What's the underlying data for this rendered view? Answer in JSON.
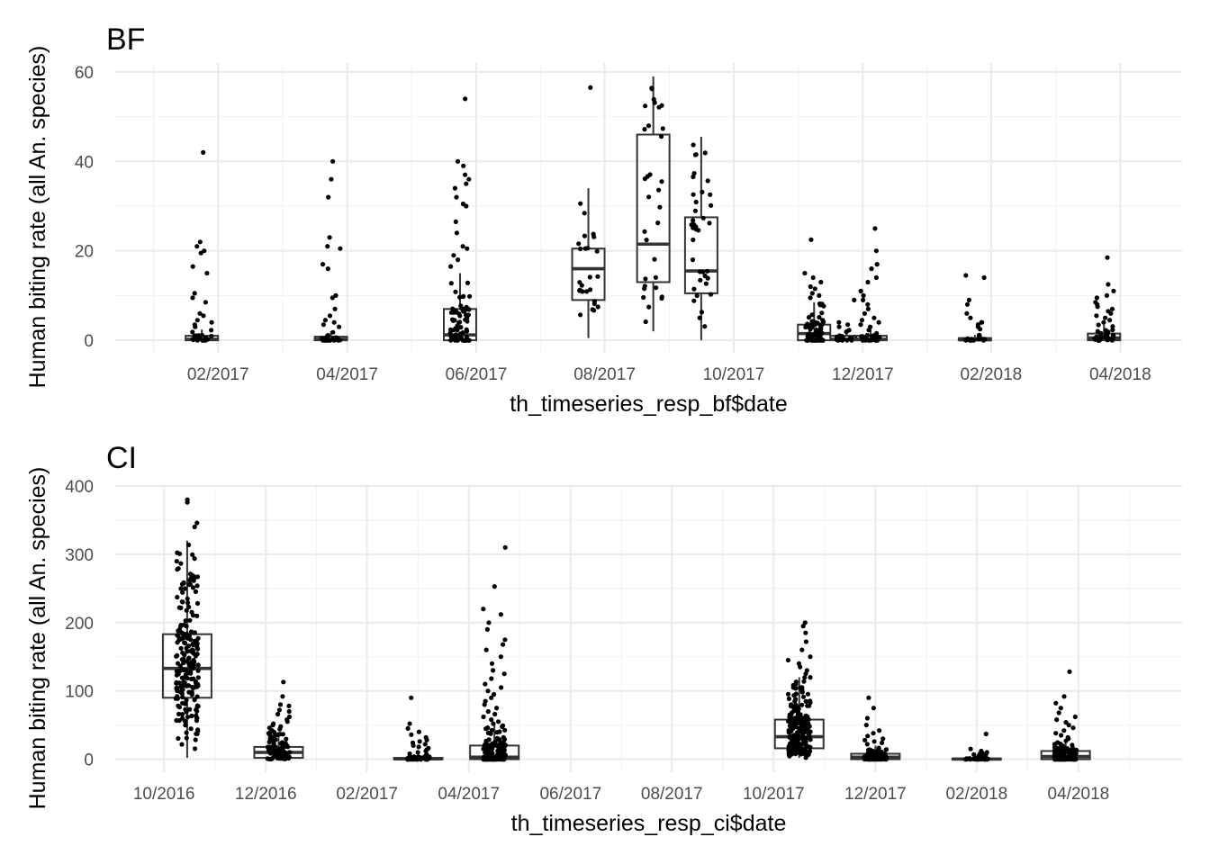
{
  "chart_data": [
    {
      "type": "box",
      "title": "BF",
      "xlabel": "th_timeseries_resp_bf$date",
      "ylabel": "Human biting rate (all An. species)",
      "xlim": [
        2016.95,
        2018.33
      ],
      "ylim": [
        -2.8,
        62
      ],
      "y_ticks": [
        0,
        20,
        40,
        60
      ],
      "y_minor": [
        10,
        30,
        50
      ],
      "x_ticks": [
        {
          "label": "02/2017",
          "pos": 2017.083
        },
        {
          "label": "04/2017",
          "pos": 2017.25
        },
        {
          "label": "06/2017",
          "pos": 2017.417
        },
        {
          "label": "08/2017",
          "pos": 2017.583
        },
        {
          "label": "10/2017",
          "pos": 2017.75
        },
        {
          "label": "12/2017",
          "pos": 2017.917
        },
        {
          "label": "02/2018",
          "pos": 2018.083
        },
        {
          "label": "04/2018",
          "pos": 2018.25
        }
      ],
      "groups": [
        {
          "x": 2017.062,
          "q1": 0,
          "median": 0.2,
          "q3": 1,
          "lo": 0,
          "hi": 2.4,
          "n": 40,
          "outliers": [
            42,
            22,
            21,
            20,
            19.5,
            16.5,
            15,
            10.5,
            9.5,
            8.5,
            6,
            5.5,
            4.5,
            4,
            3.5,
            3
          ]
        },
        {
          "x": 2017.229,
          "q1": 0,
          "median": 0.2,
          "q3": 0.8,
          "lo": 0,
          "hi": 2,
          "n": 40,
          "outliers": [
            40,
            36,
            32,
            23,
            21,
            20.5,
            17,
            16,
            10,
            9.5,
            7,
            5.5,
            4.5,
            4,
            3.5,
            3
          ]
        },
        {
          "x": 2017.396,
          "q1": 0,
          "median": 1.2,
          "q3": 7,
          "lo": 0,
          "hi": 15,
          "n": 90,
          "outliers": [
            54,
            40,
            39,
            37,
            36,
            35,
            34,
            32,
            30.5,
            30,
            26.5,
            24,
            21,
            20.5,
            19,
            18,
            16.5
          ]
        },
        {
          "x": 2017.562,
          "q1": 9,
          "median": 16,
          "q3": 20.5,
          "lo": 0.5,
          "hi": 34,
          "n": 26,
          "outliers": [
            56.5
          ]
        },
        {
          "x": 2017.646,
          "q1": 13,
          "median": 21.5,
          "q3": 46,
          "lo": 2,
          "hi": 59,
          "n": 32,
          "outliers": []
        },
        {
          "x": 2017.708,
          "q1": 10.5,
          "median": 15.5,
          "q3": 27.5,
          "lo": 0,
          "hi": 45.5,
          "n": 38,
          "outliers": []
        },
        {
          "x": 2017.854,
          "q1": 0,
          "median": 1.5,
          "q3": 3.5,
          "lo": 0,
          "hi": 8.5,
          "n": 70,
          "outliers": [
            22.5,
            15,
            14,
            13,
            12,
            11.5,
            10.5,
            10,
            9.5
          ]
        },
        {
          "x": 2017.896,
          "q1": 0,
          "median": 0.2,
          "q3": 1,
          "lo": 0,
          "hi": 2.5,
          "n": 22,
          "outliers": [
            9,
            4,
            3.5,
            3
          ]
        },
        {
          "x": 2017.927,
          "q1": 0,
          "median": 0.2,
          "q3": 1,
          "lo": 0,
          "hi": 2.5,
          "n": 45,
          "outliers": [
            25,
            20,
            17,
            16,
            14,
            13,
            11,
            10,
            9,
            8,
            7,
            6,
            5,
            4.5,
            4,
            3.5,
            3
          ]
        },
        {
          "x": 2018.062,
          "q1": 0,
          "median": 0.1,
          "q3": 0.5,
          "lo": 0,
          "hi": 1.2,
          "n": 30,
          "outliers": [
            14.5,
            14,
            9,
            8,
            6,
            5,
            4,
            4,
            3.5,
            3,
            2.5
          ]
        },
        {
          "x": 2018.229,
          "q1": 0,
          "median": 0.5,
          "q3": 1.5,
          "lo": 0,
          "hi": 3.5,
          "n": 45,
          "outliers": [
            18.5,
            12.5,
            11,
            10,
            9.5,
            8.5,
            8,
            7.5,
            7,
            6.5,
            6,
            5.5,
            5,
            4.5,
            4
          ]
        }
      ]
    },
    {
      "type": "box",
      "title": "CI",
      "xlabel": "th_timeseries_resp_ci$date",
      "ylabel": "Human biting rate (all An. species)",
      "xlim": [
        2016.67,
        2018.42
      ],
      "ylim": [
        -19,
        400
      ],
      "y_ticks": [
        0,
        100,
        200,
        300,
        400
      ],
      "y_minor": [
        50,
        150,
        250,
        350
      ],
      "x_ticks": [
        {
          "label": "10/2016",
          "pos": 2016.75
        },
        {
          "label": "12/2016",
          "pos": 2016.917
        },
        {
          "label": "02/2017",
          "pos": 2017.083
        },
        {
          "label": "04/2017",
          "pos": 2017.25
        },
        {
          "label": "06/2017",
          "pos": 2017.417
        },
        {
          "label": "08/2017",
          "pos": 2017.583
        },
        {
          "label": "10/2017",
          "pos": 2017.75
        },
        {
          "label": "12/2017",
          "pos": 2017.917
        },
        {
          "label": "02/2018",
          "pos": 2018.083
        },
        {
          "label": "04/2018",
          "pos": 2018.25
        }
      ],
      "groups": [
        {
          "x": 2016.788,
          "q1": 90,
          "median": 133,
          "q3": 183,
          "lo": 2,
          "hi": 320,
          "n": 210,
          "outliers": [
            380,
            376,
            346,
            340
          ]
        },
        {
          "x": 2016.938,
          "q1": 2,
          "median": 10,
          "q3": 18,
          "lo": 0,
          "hi": 40,
          "n": 100,
          "outliers": [
            113,
            92,
            80,
            78,
            72,
            70,
            66,
            62,
            58,
            55,
            52,
            50,
            48,
            46,
            44,
            42
          ]
        },
        {
          "x": 2017.167,
          "q1": 0,
          "median": 0.5,
          "q3": 2,
          "lo": 0,
          "hi": 5,
          "n": 75,
          "outliers": [
            90,
            52,
            45,
            40,
            36,
            32,
            28,
            26,
            24,
            22,
            20,
            18,
            16,
            14,
            12,
            10,
            8,
            7
          ]
        },
        {
          "x": 2017.292,
          "q1": 0,
          "median": 3,
          "q3": 20,
          "lo": 0,
          "hi": 50,
          "n": 160,
          "outliers": [
            310,
            253,
            220,
            212,
            200,
            190,
            175,
            168,
            160,
            150,
            140,
            130,
            125,
            118,
            110,
            105,
            100,
            95,
            90,
            85,
            80,
            75,
            70,
            66,
            62,
            58,
            55,
            52
          ]
        },
        {
          "x": 2017.792,
          "q1": 16,
          "median": 33,
          "q3": 58,
          "lo": 2,
          "hi": 120,
          "n": 220,
          "outliers": [
            200,
            195,
            185,
            172,
            160,
            150,
            145,
            140,
            135,
            130,
            125
          ]
        },
        {
          "x": 2017.917,
          "q1": 0,
          "median": 3,
          "q3": 8,
          "lo": 0,
          "hi": 20,
          "n": 100,
          "outliers": [
            90,
            75,
            60,
            50,
            42,
            38,
            34,
            30,
            28,
            26,
            24,
            22
          ]
        },
        {
          "x": 2018.083,
          "q1": 0,
          "median": 0.2,
          "q3": 1,
          "lo": 0,
          "hi": 2.5,
          "n": 45,
          "outliers": [
            37,
            15,
            12,
            10,
            9,
            8,
            7,
            6,
            5,
            4,
            3
          ]
        },
        {
          "x": 2018.229,
          "q1": 0,
          "median": 4,
          "q3": 12,
          "lo": 0,
          "hi": 28,
          "n": 120,
          "outliers": [
            128,
            92,
            82,
            75,
            68,
            62,
            58,
            54,
            50,
            46,
            42,
            38,
            35,
            32,
            30
          ]
        }
      ]
    }
  ]
}
